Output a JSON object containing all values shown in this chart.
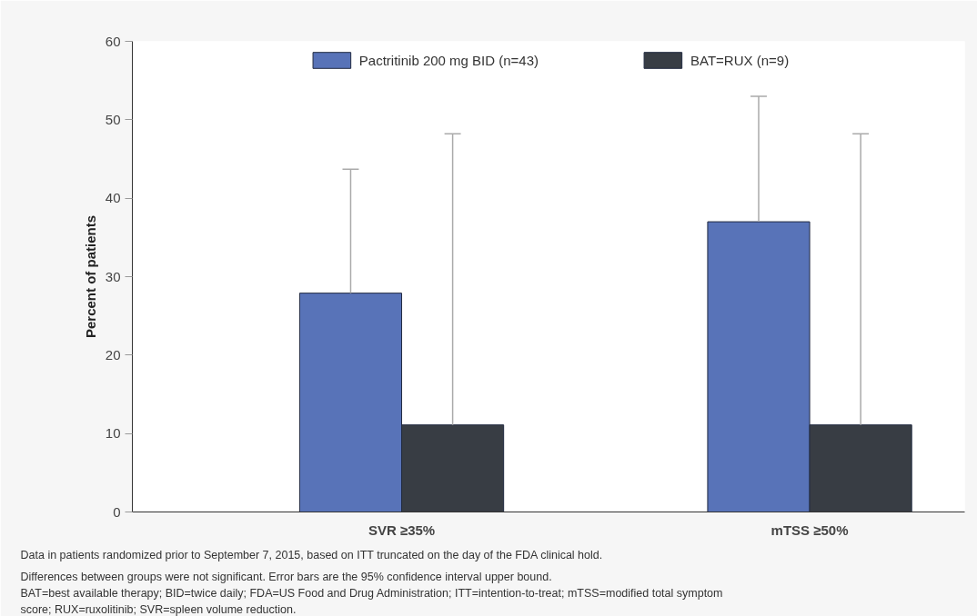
{
  "chart_data": {
    "type": "bar",
    "ylabel": "Percent of patients",
    "categories": [
      "SVR ≥35%",
      "mTSS ≥50%"
    ],
    "series": [
      {
        "name": "Pactritinib 200 mg BID (n=43)",
        "color": "#5873b8",
        "values": [
          27.9,
          37.0
        ],
        "errors": [
          [
            27.9,
            43.7
          ],
          [
            37.0,
            53.0
          ]
        ]
      },
      {
        "name": "BAT=RUX (n=9)",
        "color": "#383d44",
        "values": [
          11.1,
          11.1
        ],
        "errors": [
          [
            11.1,
            48.2
          ],
          [
            11.1,
            48.2
          ]
        ]
      }
    ],
    "ylim": [
      0,
      60
    ],
    "yticks": [
      0,
      10,
      20,
      30,
      40,
      50,
      60
    ],
    "grid": false,
    "legend": "top",
    "annotations": [
      "Data in patients randomized prior to September 7, 2015, based on ITT truncated on the day of the FDA clinical hold.",
      "Differences between groups were not significant. Error bars are the 95% confidence interval upper bound.",
      "BAT=best available therapy; BID=twice daily; FDA=US Food and Drug Administration; ITT=intention-to-treat; mTSS=modified total symptom score; RUX=ruxolitinib; SVR=spleen volume reduction."
    ]
  }
}
